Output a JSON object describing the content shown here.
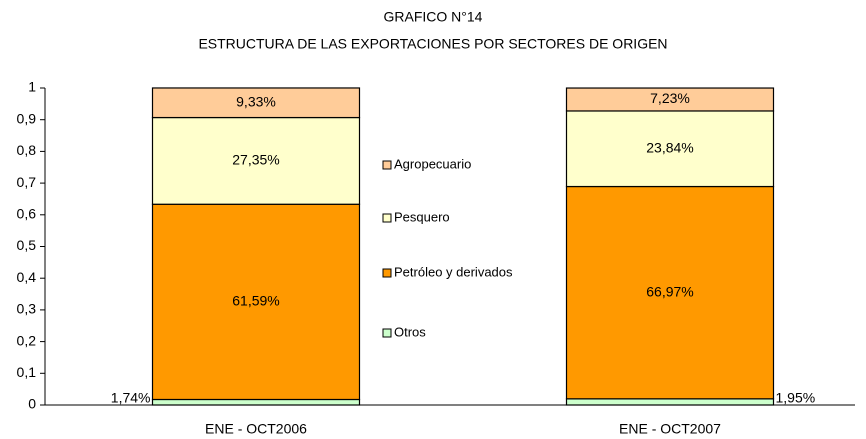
{
  "chart_data": {
    "type": "stacked_bar",
    "title": "GRAFICO N°14",
    "subtitle": "ESTRUCTURA DE LAS EXPORTACIONES POR SECTORES DE ORIGEN",
    "categories": [
      "ENE - OCT2006",
      "ENE - OCT2007"
    ],
    "series": [
      {
        "name": "Otros",
        "color": "#CCFFCC",
        "values": [
          0.0174,
          0.0195
        ],
        "value_labels": [
          "1,74%",
          "1,95%"
        ]
      },
      {
        "name": "Petróleo y derivados",
        "color": "#FF9900",
        "values": [
          0.6159,
          0.6697
        ],
        "value_labels": [
          "61,59%",
          "66,97%"
        ]
      },
      {
        "name": "Pesquero",
        "color": "#FFFFCC",
        "values": [
          0.2735,
          0.2384
        ],
        "value_labels": [
          "27,35%",
          "23,84%"
        ]
      },
      {
        "name": "Agropecuario",
        "color": "#FFCC99",
        "values": [
          0.0933,
          0.0723
        ],
        "value_labels": [
          "9,33%",
          "7,23%"
        ]
      }
    ],
    "ylim": [
      0,
      1
    ],
    "yticks": [
      0,
      {
        "value": 0.1,
        "label": "0,1"
      },
      {
        "value": 0.2,
        "label": "0,2"
      },
      {
        "value": 0.3,
        "label": "0,3"
      },
      {
        "value": 0.4,
        "label": "0,4"
      },
      {
        "value": 0.5,
        "label": "0,5"
      },
      {
        "value": 0.6,
        "label": "0,6"
      },
      {
        "value": 0.7,
        "label": "0,7"
      },
      {
        "value": 0.8,
        "label": "0,8"
      },
      {
        "value": 0.9,
        "label": "0,9"
      },
      1
    ],
    "grid": false
  }
}
